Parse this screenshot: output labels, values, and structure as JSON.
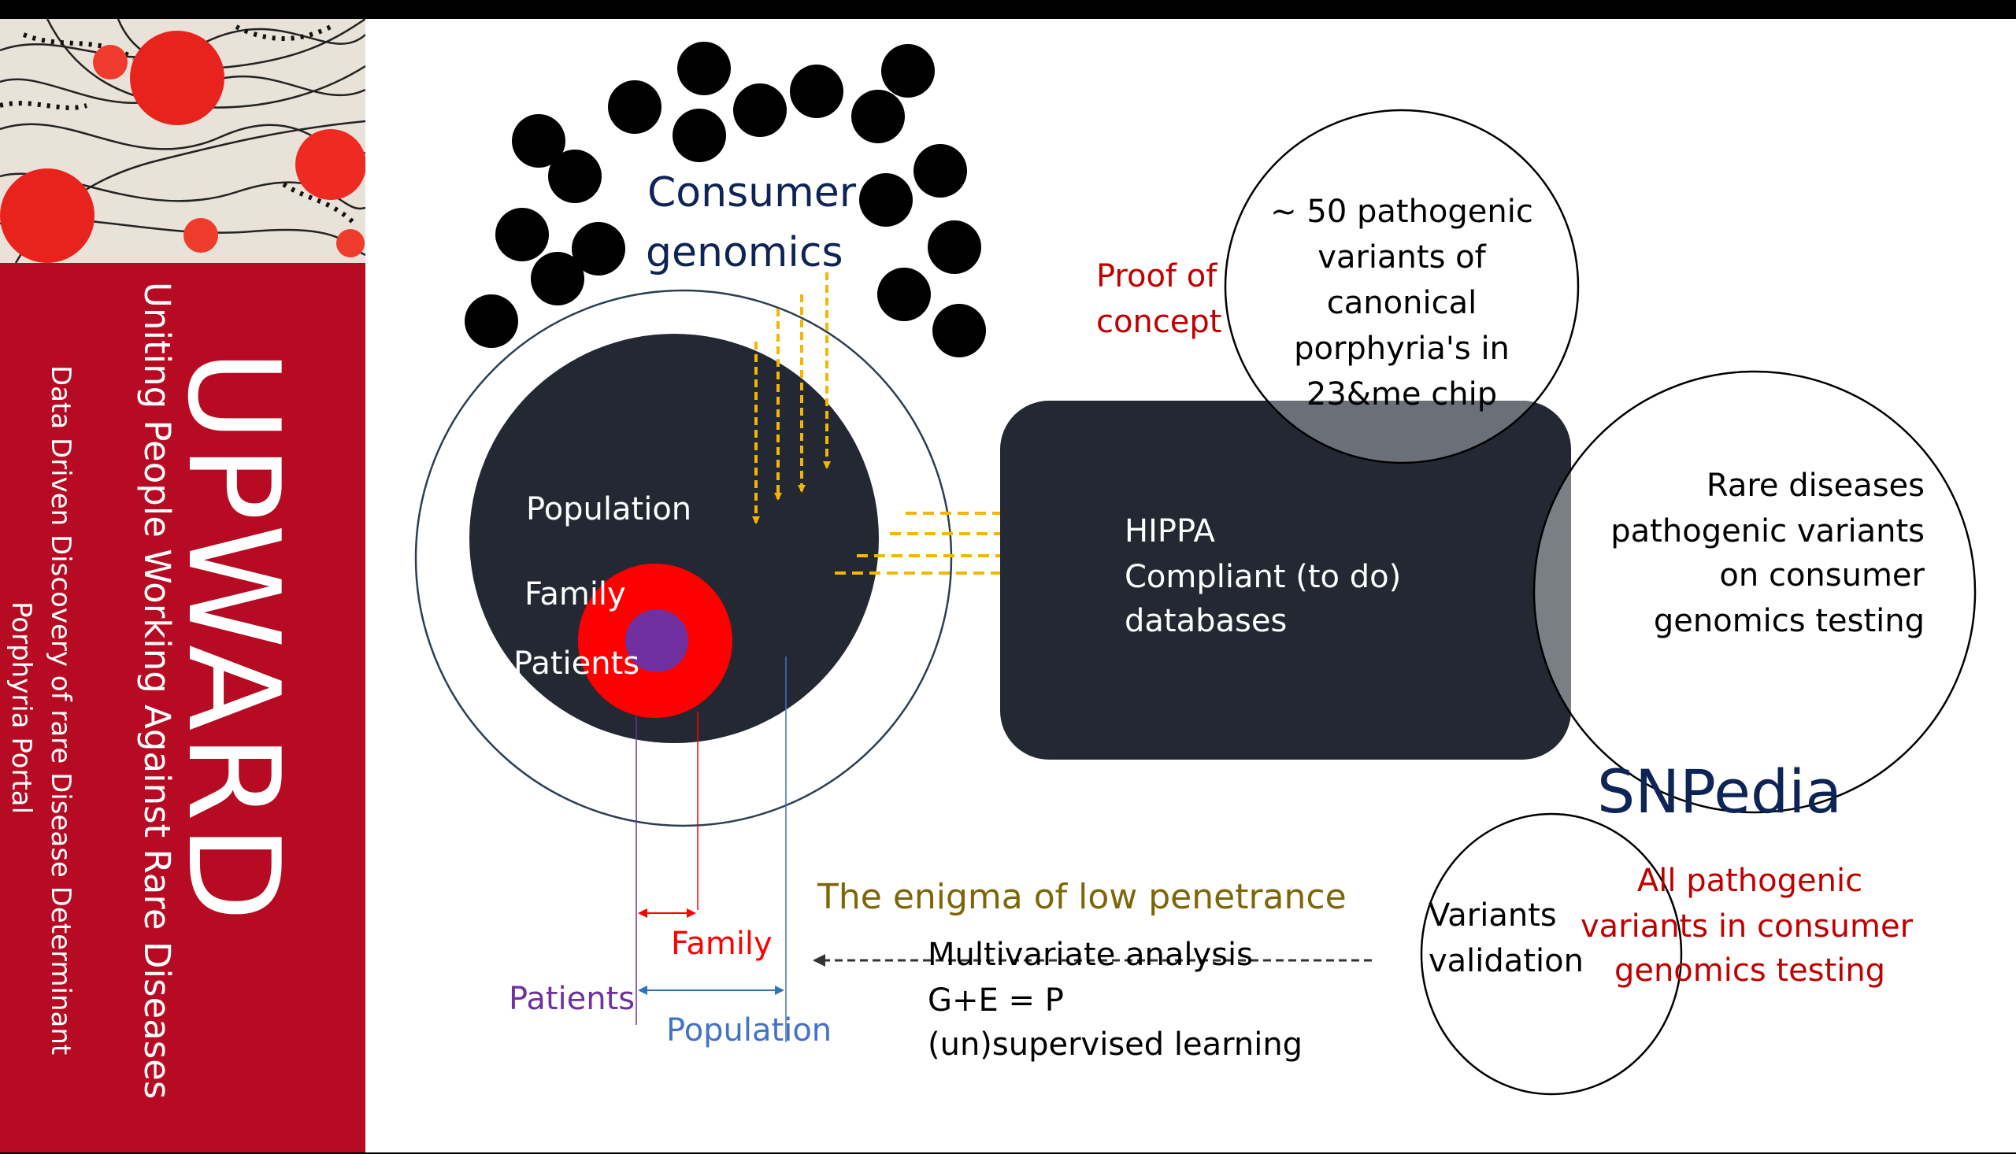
{
  "sidebar": {
    "brand": "UPWARD",
    "tagline": "Uniting People Working Against Rare Diseases",
    "subtitle_line1": "Data Driven Discovery of rare Disease Determinant",
    "subtitle_line2": "Porphyria Portal"
  },
  "diagram": {
    "consumer_genomics_line1": "Consumer",
    "consumer_genomics_line2": "genomics",
    "population_label": "Population",
    "family_label": "Family",
    "patients_label": "Patients",
    "hippa_line1": "HIPPA",
    "hippa_line2": "Compliant (to do)",
    "hippa_line3": "databases",
    "proof_line1": "Proof of",
    "proof_line2": "concept",
    "porphyria_line1": "~ 50 pathogenic",
    "porphyria_line2": "variants of",
    "porphyria_line3": "canonical",
    "porphyria_line4": "porphyria's in",
    "porphyria_line5": "23&me chip",
    "rare_line1": "Rare diseases",
    "rare_line2": "pathogenic variants",
    "rare_line3": "on consumer",
    "rare_line4": "genomics testing",
    "snpedia": "SNPedia",
    "all_line1": "All pathogenic",
    "all_line2": "variants in consumer",
    "all_line3": "genomics testing",
    "enigma": "The enigma of low penetrance",
    "validation_line1": "Variants",
    "validation_line2": "validation",
    "multi_line1": "Multivariate analysis",
    "multi_line2": "G+E = P",
    "multi_line3": "(un)supervised learning",
    "scale_family": "Family",
    "scale_patients": "Patients",
    "scale_population": "Population"
  },
  "colors": {
    "sidebar_red": "#b60b23",
    "dark_navy": "#232833",
    "arrow_gold": "#f2b705",
    "title_navy": "#0f2456",
    "proof_red": "#c00000",
    "enigma_olive": "#7d6608",
    "patients_purple": "#7030a0",
    "population_blue": "#4472c4"
  }
}
